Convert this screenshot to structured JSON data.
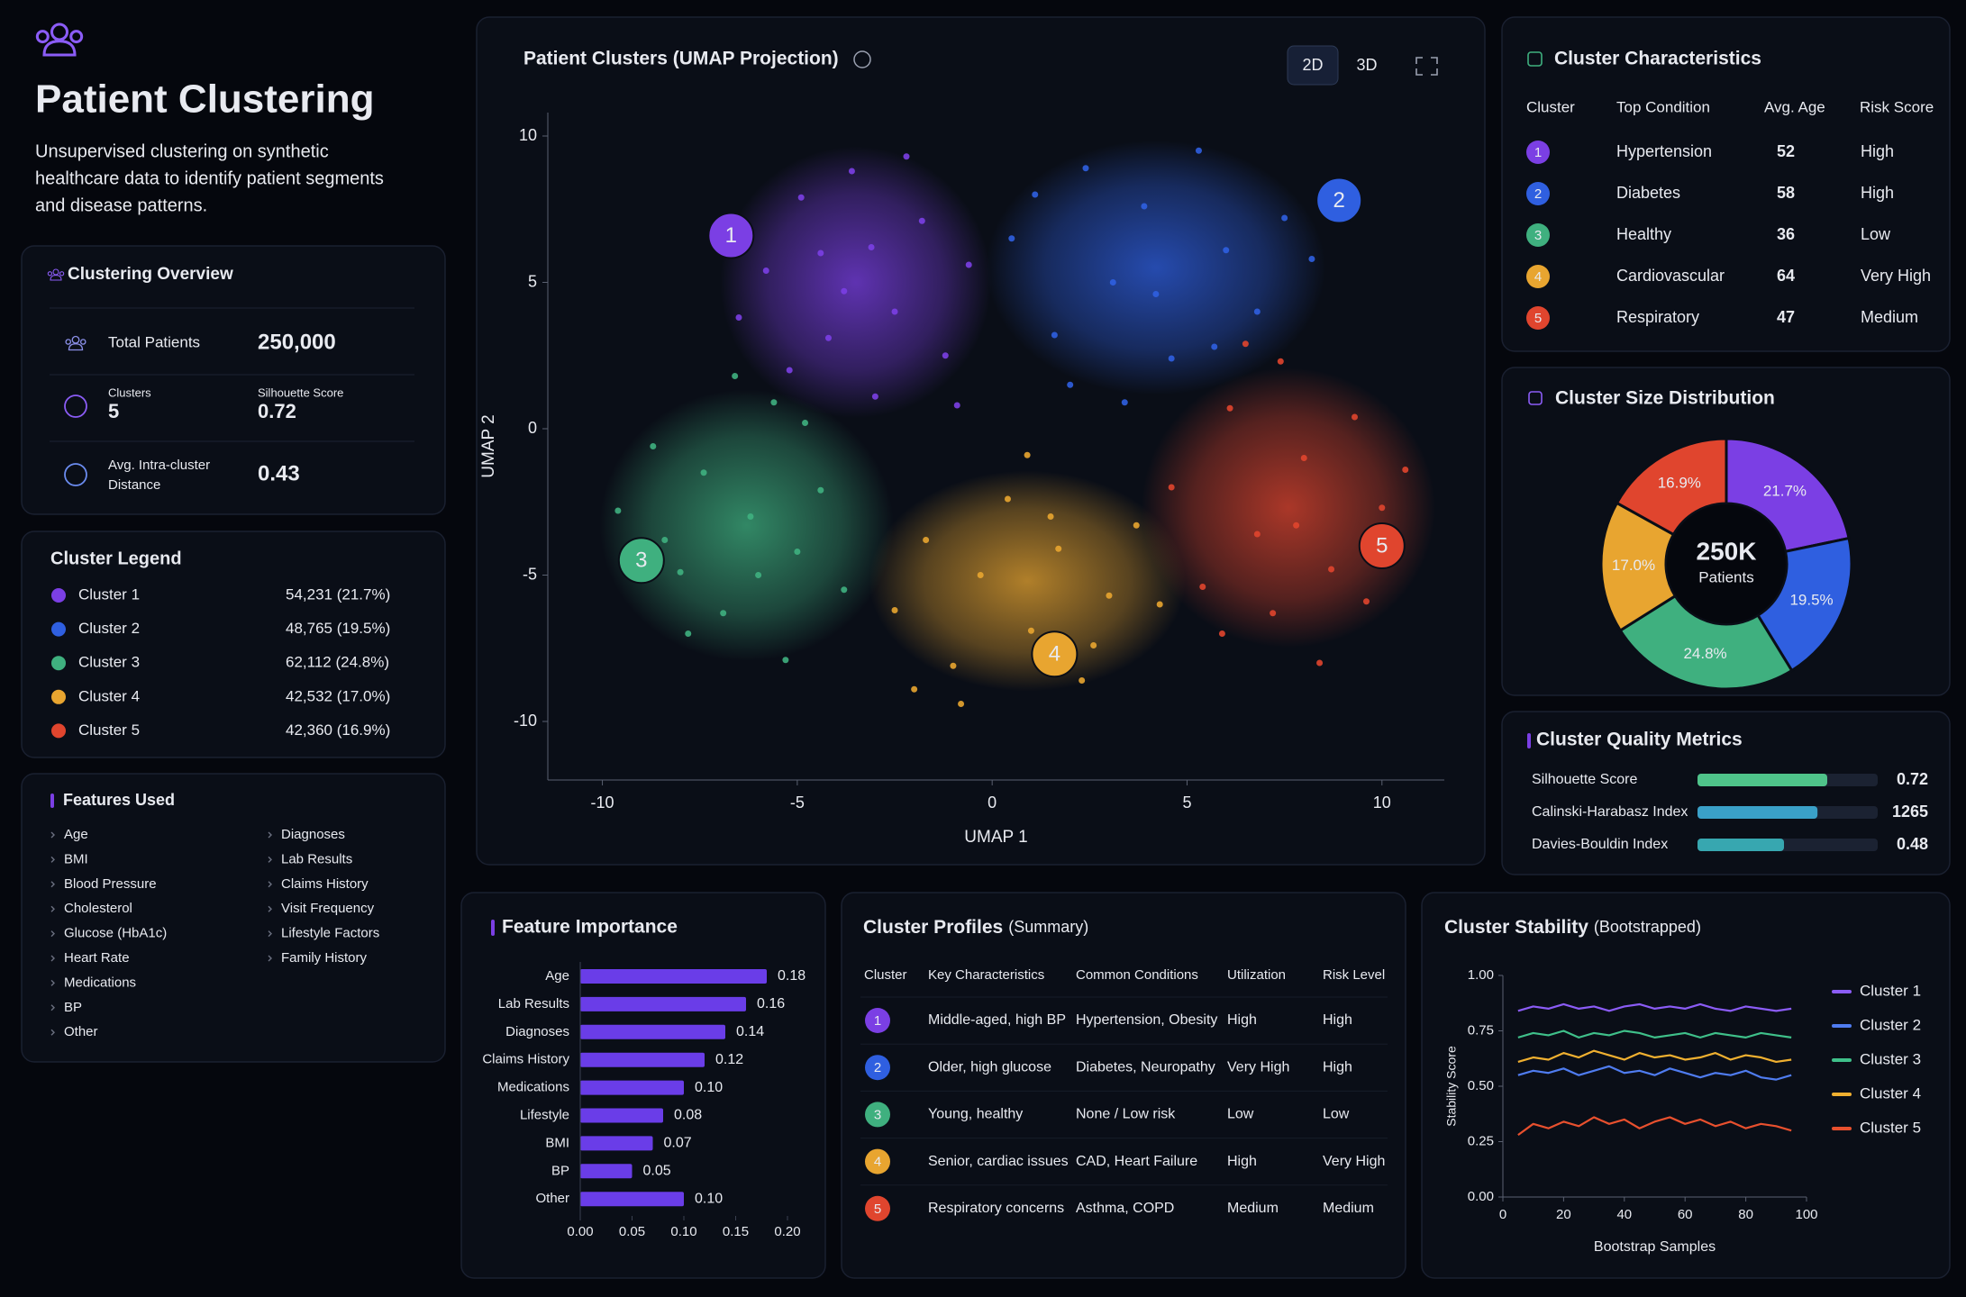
{
  "header": {
    "title": "Patient Clustering",
    "description": [
      "Unsupervised clustering on synthetic",
      "healthcare data to identify patient segments",
      "and disease patterns."
    ]
  },
  "overview": {
    "title": "Clustering Overview",
    "total_patients_label": "Total Patients",
    "total_patients": "250,000",
    "clusters_label": "Clusters",
    "clusters": 5,
    "silhouette_label": "Silhouette Score",
    "silhouette": 0.72,
    "distance_label": [
      "Avg. Intra-cluster",
      "Distance"
    ],
    "distance": 0.43
  },
  "legend": {
    "title": "Cluster Legend",
    "items": [
      {
        "name": "Cluster 1",
        "count": "54,231 (21.7%)",
        "color": "#7b3fe4"
      },
      {
        "name": "Cluster 2",
        "count": "48,765 (19.5%)",
        "color": "#2f5fe0"
      },
      {
        "name": "Cluster 3",
        "count": "62,112 (24.8%)",
        "color": "#3fb07f"
      },
      {
        "name": "Cluster 4",
        "count": "42,532 (17.0%)",
        "color": "#e8a530"
      },
      {
        "name": "Cluster 5",
        "count": "42,360 (16.9%)",
        "color": "#e0452e"
      }
    ]
  },
  "features": {
    "title": "Features Used",
    "columns": [
      [
        "Age",
        "BMI",
        "Blood Pressure",
        "Cholesterol",
        "Glucose (HbA1c)",
        "Heart Rate",
        "Medications",
        "BP",
        "Other"
      ],
      [
        "Diagnoses",
        "Lab Results",
        "Claims History",
        "Visit Frequency",
        "Lifestyle Factors",
        "Family History"
      ]
    ]
  },
  "characteristics": {
    "title": "Cluster Characteristics",
    "headers": [
      "Cluster",
      "Top Condition",
      "Avg. Age",
      "Risk Score"
    ],
    "rows": [
      {
        "cluster": 1,
        "color": "#7b3fe4",
        "condition": "Hypertension",
        "age": 52,
        "risk": "High",
        "risk_color": "#ef4444"
      },
      {
        "cluster": 2,
        "color": "#2f5fe0",
        "condition": "Diabetes",
        "age": 58,
        "risk": "High",
        "risk_color": "#ef4444"
      },
      {
        "cluster": 3,
        "color": "#3fb07f",
        "condition": "Healthy",
        "age": 36,
        "risk": "Low",
        "risk_color": "#3fc07f"
      },
      {
        "cluster": 4,
        "color": "#e8a530",
        "condition": "Cardiovascular",
        "age": 64,
        "risk": "Very High",
        "risk_color": "#f05a3c"
      },
      {
        "cluster": 5,
        "color": "#e0452e",
        "condition": "Respiratory",
        "age": 47,
        "risk": "Medium",
        "risk_color": "#f2a623"
      }
    ]
  },
  "profiles": {
    "title": "Cluster Profiles",
    "subtitle": "(Summary)",
    "headers": [
      "Cluster",
      "Key Characteristics",
      "Common Conditions",
      "Utilization",
      "Risk Level"
    ],
    "rows": [
      {
        "cluster": 1,
        "color": "#7b3fe4",
        "key": "Middle-aged, high BP",
        "conditions": "Hypertension, Obesity",
        "utilization": "High",
        "utilization_color": "#f05a3c",
        "risk": "High",
        "risk_color": "#ef4444"
      },
      {
        "cluster": 2,
        "color": "#2f5fe0",
        "key": "Older, high glucose",
        "conditions": "Diabetes, Neuropathy",
        "utilization": "Very High",
        "utilization_color": "#f2b124",
        "risk": "High",
        "risk_color": "#ef4444"
      },
      {
        "cluster": 3,
        "color": "#3fb07f",
        "key": "Young, healthy",
        "conditions": "None / Low risk",
        "utilization": "Low",
        "utilization_color": "#3fc07f",
        "risk": "Low",
        "risk_color": "#3fc07f"
      },
      {
        "cluster": 4,
        "color": "#e8a530",
        "key": "Senior, cardiac issues",
        "conditions": "CAD, Heart Failure",
        "utilization": "High",
        "utilization_color": "#f07a2c",
        "risk": "Very High",
        "risk_color": "#f05a3c"
      },
      {
        "cluster": 5,
        "color": "#e0452e",
        "key": "Respiratory concerns",
        "conditions": "Asthma, COPD",
        "utilization": "Medium",
        "utilization_color": "#f2b124",
        "risk": "Medium",
        "risk_color": "#f2b124"
      }
    ]
  },
  "chart_data": [
    {
      "type": "scatter",
      "title": "Patient Clusters (UMAP Projection)",
      "xlabel": "UMAP 1",
      "ylabel": "UMAP 2",
      "view_buttons": [
        "2D",
        "3D"
      ],
      "xlim": [
        -11.4,
        11.6
      ],
      "ylim": [
        -12,
        10.8
      ],
      "xticks": [
        -10,
        -5,
        0,
        5,
        10
      ],
      "yticks": [
        -10,
        -5,
        0,
        5,
        10
      ],
      "series": [
        {
          "name": "1",
          "color": "#7b3fe4",
          "center": [
            -3.5,
            5
          ],
          "spread": [
            2.4,
            3.2
          ],
          "x": [
            -5.8,
            -4.9,
            -4.2,
            -3.6,
            -3.1,
            -2.5,
            -1.8,
            -1.2,
            -0.6,
            -5.2,
            -4.4,
            -3.0,
            -2.2,
            -3.8,
            -6.5,
            -0.9
          ],
          "y": [
            5.4,
            7.9,
            3.1,
            8.8,
            6.2,
            4.0,
            7.1,
            2.5,
            5.6,
            2.0,
            6.0,
            1.1,
            9.3,
            4.7,
            3.8,
            0.8
          ]
        },
        {
          "name": "2",
          "color": "#2f5fe0",
          "center": [
            4.2,
            5.5
          ],
          "spread": [
            3,
            3
          ],
          "x": [
            0.5,
            1.6,
            2.4,
            3.1,
            3.9,
            4.6,
            5.3,
            6.0,
            6.8,
            7.5,
            2.0,
            4.2,
            5.7,
            3.4,
            8.2,
            1.1
          ],
          "y": [
            6.5,
            3.2,
            8.9,
            5.0,
            7.6,
            2.4,
            9.5,
            6.1,
            4.0,
            7.2,
            1.5,
            4.6,
            2.8,
            0.9,
            5.8,
            8.0
          ]
        },
        {
          "name": "3",
          "color": "#3fb07f",
          "center": [
            -6.3,
            -3.3
          ],
          "spread": [
            2.6,
            3.2
          ],
          "x": [
            -9.6,
            -8.7,
            -8.0,
            -7.4,
            -6.9,
            -6.2,
            -5.6,
            -5.0,
            -4.4,
            -3.8,
            -7.8,
            -6.6,
            -5.3,
            -8.4,
            -4.8,
            -6.0
          ],
          "y": [
            -2.8,
            -0.6,
            -4.9,
            -1.5,
            -6.3,
            -3.0,
            0.9,
            -4.2,
            -2.1,
            -5.5,
            -7.0,
            1.8,
            -7.9,
            -3.8,
            0.2,
            -5.0
          ]
        },
        {
          "name": "4",
          "color": "#e8a530",
          "center": [
            0.9,
            -5.2
          ],
          "spread": [
            2.8,
            2.6
          ],
          "x": [
            -2.5,
            -1.7,
            -1.0,
            -0.3,
            0.4,
            1.0,
            1.7,
            2.3,
            3.0,
            3.7,
            -0.8,
            0.9,
            2.6,
            -2.0,
            4.3,
            1.5
          ],
          "y": [
            -6.2,
            -3.8,
            -8.1,
            -5.0,
            -2.4,
            -6.9,
            -4.1,
            -8.6,
            -5.7,
            -3.3,
            -9.4,
            -0.9,
            -7.4,
            -8.9,
            -6.0,
            -3.0
          ]
        },
        {
          "name": "5",
          "color": "#e0452e",
          "center": [
            7.6,
            -2.7
          ],
          "spread": [
            2.6,
            3.3
          ],
          "x": [
            4.6,
            5.4,
            6.1,
            6.8,
            7.4,
            8.0,
            8.7,
            9.3,
            10.0,
            10.6,
            5.9,
            7.2,
            8.4,
            9.6,
            6.5,
            7.8
          ],
          "y": [
            -2.0,
            -5.4,
            0.7,
            -3.6,
            2.3,
            -1.0,
            -4.8,
            0.4,
            -2.7,
            -1.4,
            -7.0,
            -6.3,
            -8.0,
            -5.9,
            2.9,
            -3.3
          ]
        }
      ]
    },
    {
      "type": "pie",
      "title": "Cluster Size Distribution",
      "center_label": "250K",
      "center_sublabel": "Patients",
      "values": [
        21.7,
        19.5,
        24.8,
        17.0,
        16.9
      ],
      "value_labels": [
        "21.7%",
        "19.5%",
        "24.8%",
        "17.0%",
        "16.9%"
      ],
      "colors": [
        "#7b3fe4",
        "#2f5fe0",
        "#3fb07f",
        "#e8a530",
        "#e0452e"
      ]
    },
    {
      "type": "metric_bars",
      "title": "Cluster Quality Metrics",
      "categories": [
        "Silhouette Score",
        "Calinski-Harabasz Index",
        "Davies-Bouldin Index"
      ],
      "values": [
        0.72,
        1265,
        0.48
      ],
      "xlims": [
        [
          0,
          1
        ],
        [
          0,
          1900
        ],
        [
          0,
          1
        ]
      ],
      "colors": [
        "#4fc38a",
        "#3aa0c8",
        "#37a7b0"
      ]
    },
    {
      "type": "hbar",
      "title": "Feature Importance",
      "categories": [
        "Age",
        "Lab Results",
        "Diagnoses",
        "Claims History",
        "Medications",
        "Lifestyle",
        "BMI",
        "BP",
        "Other"
      ],
      "values": [
        0.18,
        0.16,
        0.14,
        0.12,
        0.1,
        0.08,
        0.07,
        0.05,
        0.1
      ],
      "value_labels": [
        "0.18",
        "0.16",
        "0.14",
        "0.12",
        "0.10",
        "0.08",
        "0.07",
        "0.05",
        "0.10"
      ],
      "color": "#6a3de8",
      "xlim": [
        0,
        0.2
      ],
      "xticks": [
        {
          "value": 0,
          "label": "0.00"
        },
        0.05,
        {
          "value": 0.1,
          "label": "0.10"
        },
        0.15,
        {
          "value": 0.2,
          "label": "0.20"
        }
      ]
    },
    {
      "type": "line",
      "title": "Cluster Stability",
      "subtitle": "(Bootstrapped)",
      "xlabel": "Bootstrap Samples",
      "ylabel": "Stability Score",
      "x": [
        5,
        10,
        15,
        20,
        25,
        30,
        35,
        40,
        45,
        50,
        55,
        60,
        65,
        70,
        75,
        80,
        85,
        90,
        95
      ],
      "xlim": [
        0,
        100
      ],
      "xticks": [
        0,
        20,
        40,
        60,
        80,
        100
      ],
      "ylim": [
        0,
        1
      ],
      "yticks": [
        {
          "value": 0,
          "label": "0.00"
        },
        0.25,
        {
          "value": 0.5,
          "label": "0.50"
        },
        0.75,
        {
          "value": 1,
          "label": "1.00"
        }
      ],
      "legend": "right",
      "series": [
        {
          "name": "Cluster 1",
          "color": "#8b5cf6",
          "values": [
            0.84,
            0.86,
            0.85,
            0.87,
            0.85,
            0.86,
            0.84,
            0.86,
            0.87,
            0.85,
            0.86,
            0.85,
            0.87,
            0.85,
            0.84,
            0.86,
            0.85,
            0.84,
            0.85
          ]
        },
        {
          "name": "Cluster 2",
          "color": "#4f7cf0",
          "values": [
            0.55,
            0.57,
            0.56,
            0.58,
            0.55,
            0.57,
            0.59,
            0.56,
            0.57,
            0.55,
            0.58,
            0.56,
            0.54,
            0.56,
            0.55,
            0.57,
            0.54,
            0.53,
            0.55
          ]
        },
        {
          "name": "Cluster 3",
          "color": "#3fc08a",
          "values": [
            0.72,
            0.74,
            0.73,
            0.75,
            0.72,
            0.74,
            0.73,
            0.75,
            0.74,
            0.72,
            0.73,
            0.74,
            0.72,
            0.74,
            0.73,
            0.72,
            0.74,
            0.73,
            0.72
          ]
        },
        {
          "name": "Cluster 4",
          "color": "#f0b030",
          "values": [
            0.61,
            0.63,
            0.62,
            0.65,
            0.63,
            0.66,
            0.64,
            0.62,
            0.65,
            0.63,
            0.64,
            0.62,
            0.63,
            0.65,
            0.62,
            0.64,
            0.63,
            0.61,
            0.62
          ]
        },
        {
          "name": "Cluster 5",
          "color": "#e8502e",
          "values": [
            0.28,
            0.33,
            0.31,
            0.34,
            0.32,
            0.36,
            0.33,
            0.35,
            0.31,
            0.34,
            0.36,
            0.33,
            0.35,
            0.32,
            0.34,
            0.31,
            0.33,
            0.32,
            0.3
          ]
        }
      ]
    }
  ]
}
